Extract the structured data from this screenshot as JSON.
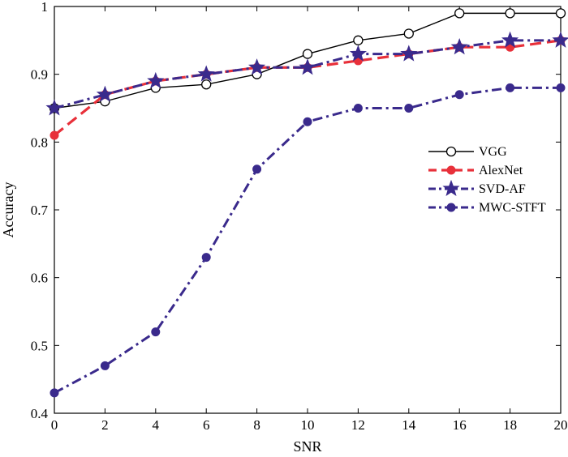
{
  "chart_data": {
    "type": "line",
    "title": "",
    "xlabel": "SNR",
    "ylabel": "Accuracy",
    "xlim": [
      0,
      20
    ],
    "ylim": [
      0.4,
      1.0
    ],
    "x": [
      0,
      2,
      4,
      6,
      8,
      10,
      12,
      14,
      16,
      18,
      20
    ],
    "x_ticks": [
      "0",
      "2",
      "4",
      "6",
      "8",
      "10",
      "12",
      "14",
      "16",
      "18",
      "20"
    ],
    "y_ticks": [
      {
        "value": 0.4,
        "label": "0.4"
      },
      {
        "value": 0.5,
        "label": "0.5"
      },
      {
        "value": 0.6,
        "label": "0.6"
      },
      {
        "value": 0.7,
        "label": "0.7"
      },
      {
        "value": 0.8,
        "label": "0.8"
      },
      {
        "value": 0.9,
        "label": "0.9"
      },
      {
        "value": 1.0,
        "label": "1"
      }
    ],
    "legend_position": "right-middle",
    "series": [
      {
        "name": "VGG",
        "color": "#000000",
        "line": "solid",
        "marker": "open-circle",
        "values": [
          0.85,
          0.86,
          0.88,
          0.885,
          0.9,
          0.93,
          0.95,
          0.96,
          0.99,
          0.99,
          0.99
        ]
      },
      {
        "name": "AlexNet",
        "color": "#e8303a",
        "line": "dashed",
        "marker": "filled-circle",
        "values": [
          0.81,
          0.87,
          0.89,
          0.9,
          0.91,
          0.91,
          0.92,
          0.93,
          0.94,
          0.94,
          0.95
        ]
      },
      {
        "name": "SVD-AF",
        "color": "#3a2a8c",
        "line": "dashdot",
        "marker": "star",
        "values": [
          0.85,
          0.87,
          0.89,
          0.9,
          0.91,
          0.91,
          0.93,
          0.93,
          0.94,
          0.95,
          0.95
        ]
      },
      {
        "name": "MWC-STFT",
        "color": "#3a2a8c",
        "line": "dashdot",
        "marker": "filled-circle",
        "values": [
          0.43,
          0.47,
          0.52,
          0.63,
          0.76,
          0.83,
          0.85,
          0.85,
          0.87,
          0.88,
          0.88
        ]
      }
    ]
  }
}
